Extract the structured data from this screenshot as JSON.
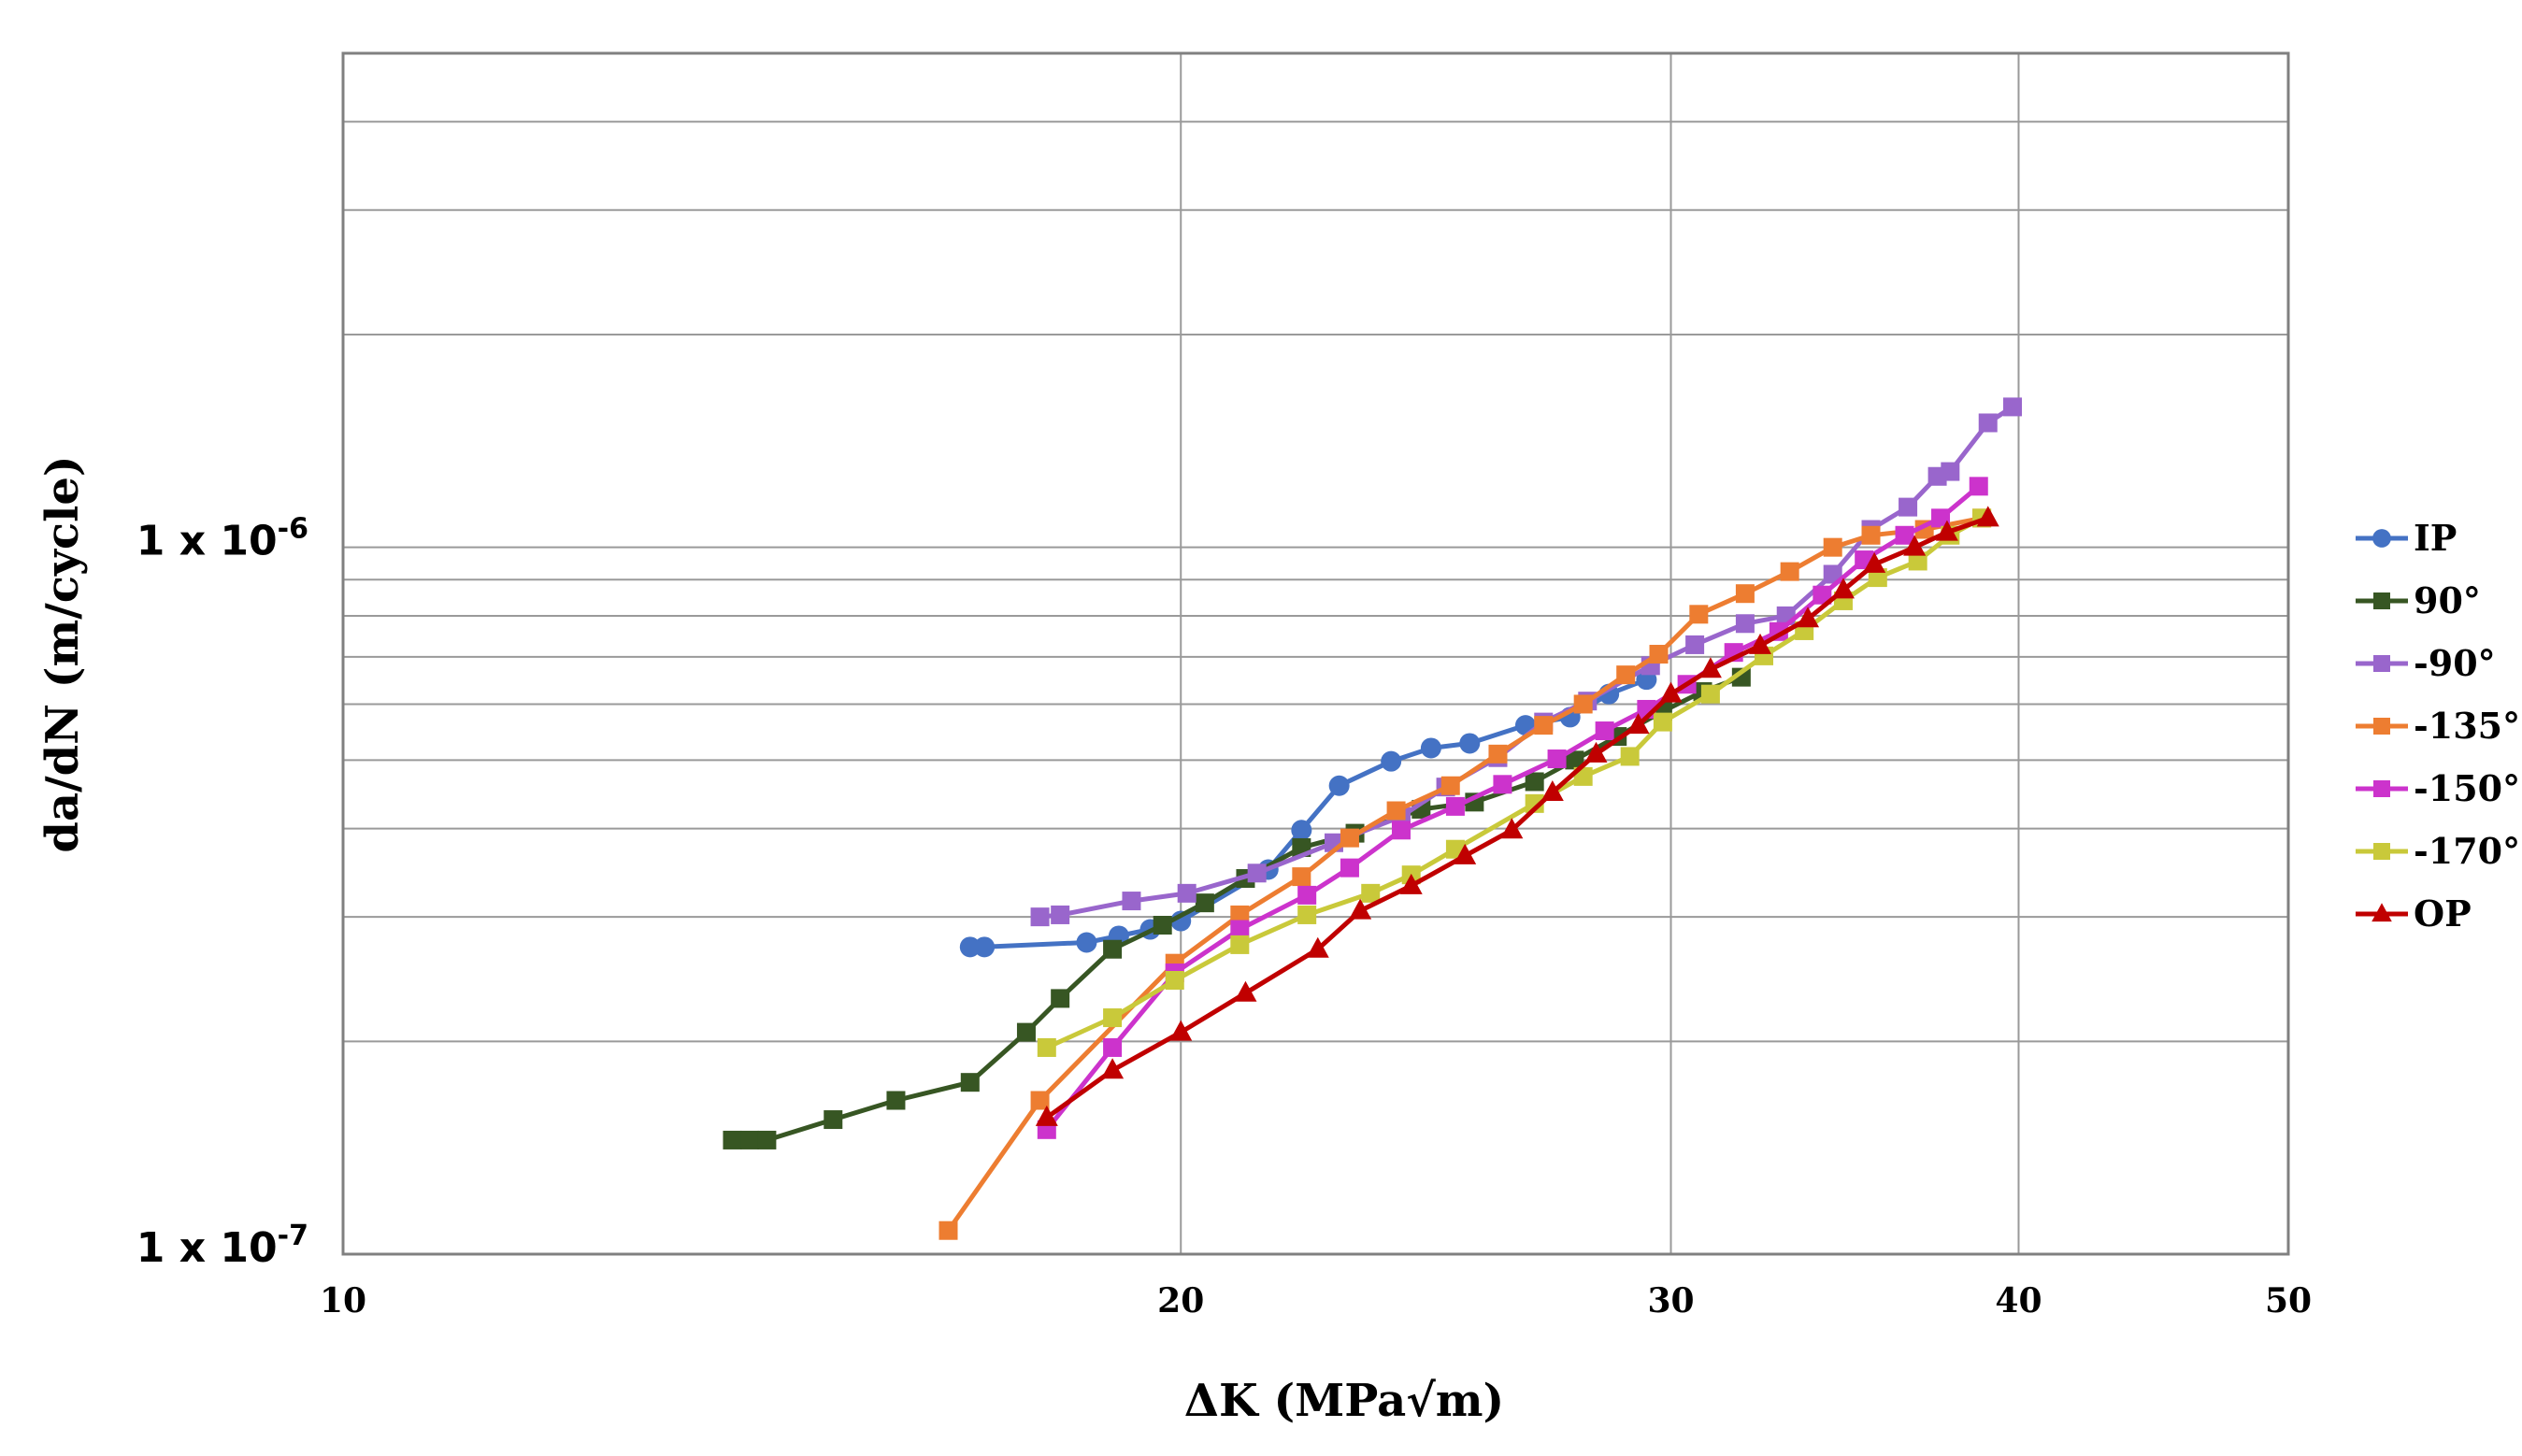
{
  "chart_data": {
    "type": "line",
    "title": "",
    "xlabel": "ΔK (MPa√m)",
    "ylabel": "da/dN (m/cycle)",
    "xscale": "log",
    "yscale": "log",
    "xlim": [
      10,
      50
    ],
    "ylim": [
      1e-07,
      5e-06
    ],
    "x_ticks": [
      {
        "value": 10,
        "label": "10"
      },
      {
        "value": 20,
        "label": "20"
      },
      {
        "value": 30,
        "label": "30"
      },
      {
        "value": 40,
        "label": "40"
      },
      {
        "value": 50,
        "label": "50"
      }
    ],
    "y_ticks": [
      {
        "value": 1e-07,
        "label": "1 x 10",
        "exp": "-7"
      },
      {
        "value": 1e-06,
        "label": "1 x 10",
        "exp": "-6"
      }
    ],
    "grid": true,
    "legend_position": "right",
    "series": [
      {
        "name": "IP",
        "color": "#4472C4",
        "marker": "circle",
        "points": [
          [
            16.8,
            2.72e-07
          ],
          [
            17.0,
            2.72e-07
          ],
          [
            18.5,
            2.76e-07
          ],
          [
            19.0,
            2.82e-07
          ],
          [
            19.5,
            2.88e-07
          ],
          [
            20.0,
            2.96e-07
          ],
          [
            21.5,
            3.5e-07
          ],
          [
            22.1,
            3.98e-07
          ],
          [
            22.8,
            4.6e-07
          ],
          [
            23.8,
            4.98e-07
          ],
          [
            24.6,
            5.2e-07
          ],
          [
            25.4,
            5.28e-07
          ],
          [
            26.6,
            5.6e-07
          ],
          [
            27.6,
            5.75e-07
          ],
          [
            28.5,
            6.2e-07
          ],
          [
            29.4,
            6.5e-07
          ]
        ]
      },
      {
        "name": "90°",
        "color": "#375623",
        "marker": "square",
        "points": [
          [
            13.8,
            1.45e-07
          ],
          [
            14.0,
            1.45e-07
          ],
          [
            14.2,
            1.45e-07
          ],
          [
            15.0,
            1.55e-07
          ],
          [
            15.8,
            1.65e-07
          ],
          [
            16.8,
            1.75e-07
          ],
          [
            17.6,
            2.06e-07
          ],
          [
            18.1,
            2.3e-07
          ],
          [
            18.9,
            2.7e-07
          ],
          [
            19.7,
            2.92e-07
          ],
          [
            20.4,
            3.14e-07
          ],
          [
            21.1,
            3.4e-07
          ],
          [
            22.1,
            3.76e-07
          ],
          [
            23.1,
            3.94e-07
          ],
          [
            24.4,
            4.26e-07
          ],
          [
            25.5,
            4.36e-07
          ],
          [
            26.8,
            4.66e-07
          ],
          [
            27.7,
            5e-07
          ],
          [
            28.7,
            5.4e-07
          ],
          [
            29.8,
            5.86e-07
          ],
          [
            30.8,
            6.25e-07
          ],
          [
            31.8,
            6.55e-07
          ]
        ]
      },
      {
        "name": "-90°",
        "color": "#9966CC",
        "marker": "square",
        "points": [
          [
            17.8,
            3e-07
          ],
          [
            18.1,
            3.02e-07
          ],
          [
            19.2,
            3.16e-07
          ],
          [
            20.1,
            3.24e-07
          ],
          [
            21.3,
            3.46e-07
          ],
          [
            22.7,
            3.82e-07
          ],
          [
            24.0,
            4.16e-07
          ],
          [
            24.9,
            4.58e-07
          ],
          [
            26.0,
            5.04e-07
          ],
          [
            27.0,
            5.66e-07
          ],
          [
            28.0,
            6.06e-07
          ],
          [
            29.5,
            6.8e-07
          ],
          [
            30.6,
            7.28e-07
          ],
          [
            31.9,
            7.8e-07
          ],
          [
            33.0,
            8e-07
          ],
          [
            34.3,
            9.16e-07
          ],
          [
            35.4,
            1.06e-06
          ],
          [
            36.5,
            1.14e-06
          ],
          [
            37.4,
            1.26e-06
          ],
          [
            37.8,
            1.28e-06
          ],
          [
            39.0,
            1.5e-06
          ],
          [
            39.8,
            1.58e-06
          ]
        ]
      },
      {
        "name": "-135°",
        "color": "#ED7D31",
        "marker": "square",
        "points": [
          [
            16.5,
            1.08e-07
          ],
          [
            17.8,
            1.65e-07
          ],
          [
            19.9,
            2.58e-07
          ],
          [
            21.0,
            3.02e-07
          ],
          [
            22.1,
            3.42e-07
          ],
          [
            23.0,
            3.88e-07
          ],
          [
            23.9,
            4.24e-07
          ],
          [
            25.0,
            4.6e-07
          ],
          [
            26.0,
            5.1e-07
          ],
          [
            27.0,
            5.6e-07
          ],
          [
            27.9,
            6e-07
          ],
          [
            28.9,
            6.6e-07
          ],
          [
            29.7,
            7.06e-07
          ],
          [
            30.7,
            8.04e-07
          ],
          [
            31.9,
            8.6e-07
          ],
          [
            33.1,
            9.24e-07
          ],
          [
            34.3,
            1e-06
          ],
          [
            35.4,
            1.04e-06
          ],
          [
            37.0,
            1.06e-06
          ],
          [
            38.8,
            1.1e-06
          ]
        ]
      },
      {
        "name": "-150°",
        "color": "#CC33CC",
        "marker": "square",
        "points": [
          [
            17.9,
            1.5e-07
          ],
          [
            18.9,
            1.96e-07
          ],
          [
            19.9,
            2.5e-07
          ],
          [
            21.0,
            2.88e-07
          ],
          [
            22.2,
            3.22e-07
          ],
          [
            23.0,
            3.52e-07
          ],
          [
            24.0,
            3.98e-07
          ],
          [
            25.1,
            4.3e-07
          ],
          [
            26.1,
            4.62e-07
          ],
          [
            27.3,
            5.02e-07
          ],
          [
            28.4,
            5.5e-07
          ],
          [
            29.4,
            5.9e-07
          ],
          [
            30.4,
            6.4e-07
          ],
          [
            31.6,
            7.1e-07
          ],
          [
            32.8,
            7.6e-07
          ],
          [
            34.0,
            8.56e-07
          ],
          [
            35.2,
            9.6e-07
          ],
          [
            36.4,
            1.04e-06
          ],
          [
            37.5,
            1.1e-06
          ],
          [
            38.7,
            1.22e-06
          ]
        ]
      },
      {
        "name": "-170°",
        "color": "#C9C93A",
        "marker": "square",
        "points": [
          [
            17.9,
            1.96e-07
          ],
          [
            18.9,
            2.16e-07
          ],
          [
            19.9,
            2.44e-07
          ],
          [
            21.0,
            2.74e-07
          ],
          [
            22.2,
            3.02e-07
          ],
          [
            23.4,
            3.24e-07
          ],
          [
            24.2,
            3.44e-07
          ],
          [
            25.1,
            3.74e-07
          ],
          [
            26.8,
            4.34e-07
          ],
          [
            27.9,
            4.74e-07
          ],
          [
            29.0,
            5.06e-07
          ],
          [
            29.8,
            5.66e-07
          ],
          [
            31.0,
            6.2e-07
          ],
          [
            32.4,
            7.02e-07
          ],
          [
            33.5,
            7.62e-07
          ],
          [
            34.6,
            8.4e-07
          ],
          [
            35.6,
            9.06e-07
          ],
          [
            36.8,
            9.56e-07
          ],
          [
            37.8,
            1.04e-06
          ],
          [
            38.8,
            1.1e-06
          ]
        ]
      },
      {
        "name": "OP",
        "color": "#C00000",
        "marker": "triangle",
        "points": [
          [
            17.9,
            1.56e-07
          ],
          [
            18.9,
            1.82e-07
          ],
          [
            20.0,
            2.06e-07
          ],
          [
            21.1,
            2.34e-07
          ],
          [
            22.4,
            2.7e-07
          ],
          [
            23.2,
            3.06e-07
          ],
          [
            24.2,
            3.32e-07
          ],
          [
            25.3,
            3.66e-07
          ],
          [
            26.3,
            3.98e-07
          ],
          [
            27.2,
            4.5e-07
          ],
          [
            28.2,
            5.1e-07
          ],
          [
            29.2,
            5.6e-07
          ],
          [
            30.0,
            6.2e-07
          ],
          [
            31.0,
            6.72e-07
          ],
          [
            32.3,
            7.26e-07
          ],
          [
            33.6,
            7.92e-07
          ],
          [
            34.6,
            8.7e-07
          ],
          [
            35.5,
            9.46e-07
          ],
          [
            36.7,
            1e-06
          ],
          [
            37.7,
            1.05e-06
          ],
          [
            39.0,
            1.1e-06
          ]
        ]
      }
    ]
  }
}
